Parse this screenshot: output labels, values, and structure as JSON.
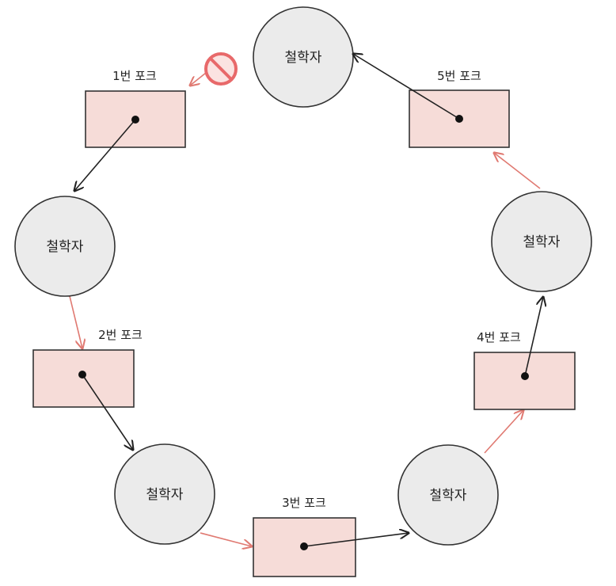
{
  "colors": {
    "philosopher_fill": "#ebebeb",
    "outline": "#333333",
    "fork_fill": "#f6dcd8",
    "held_arrow": "#222222",
    "waiting_arrow": "#e07a72",
    "blocked_icon": "#e8696a"
  },
  "philosophers": [
    {
      "id": "p-top",
      "label": "철학자"
    },
    {
      "id": "p-left",
      "label": "철학자"
    },
    {
      "id": "p-bottom-left",
      "label": "철학자"
    },
    {
      "id": "p-bottom-right",
      "label": "철학자"
    },
    {
      "id": "p-right",
      "label": "철학자"
    }
  ],
  "forks": [
    {
      "id": "fork-1",
      "label": "1번 포크"
    },
    {
      "id": "fork-2",
      "label": "2번 포크"
    },
    {
      "id": "fork-3",
      "label": "3번 포크"
    },
    {
      "id": "fork-4",
      "label": "4번 포크"
    },
    {
      "id": "fork-5",
      "label": "5번 포크"
    }
  ],
  "icons": {
    "blocked": "no-entry-icon"
  }
}
